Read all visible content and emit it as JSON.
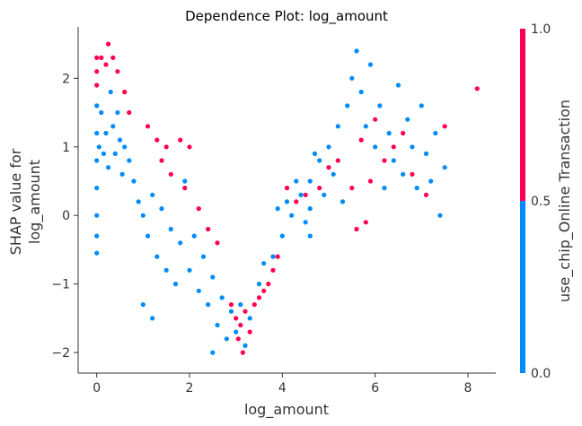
{
  "chart_data": {
    "type": "scatter",
    "title": "Dependence Plot: log_amount",
    "xlabel": "log_amount",
    "ylabel_lines": [
      "SHAP value for",
      "log_amount"
    ],
    "xlim": [
      -0.4,
      8.6
    ],
    "ylim": [
      -2.3,
      2.75
    ],
    "xticks": [
      0,
      2,
      4,
      6,
      8
    ],
    "yticks": [
      -2,
      -1,
      0,
      1,
      2
    ],
    "grid": false,
    "colorbar": {
      "label": "use_chip_Online Transaction",
      "ticks": [
        "0.0",
        "0.5",
        "1.0"
      ],
      "low_color": "#008bfb",
      "high_color": "#ff0052"
    },
    "series": [
      {
        "color_value": 0,
        "color": "#008bfb",
        "points": [
          [
            0.0,
            1.6
          ],
          [
            0.0,
            1.2
          ],
          [
            0.0,
            0.8
          ],
          [
            0.0,
            0.4
          ],
          [
            0.0,
            0.0
          ],
          [
            0.0,
            -0.3
          ],
          [
            0.0,
            -0.55
          ],
          [
            0.05,
            1.0
          ],
          [
            0.1,
            1.5
          ],
          [
            0.15,
            0.9
          ],
          [
            0.2,
            1.2
          ],
          [
            0.25,
            0.7
          ],
          [
            0.3,
            1.8
          ],
          [
            0.35,
            1.3
          ],
          [
            0.4,
            0.9
          ],
          [
            0.45,
            1.5
          ],
          [
            0.5,
            1.1
          ],
          [
            0.55,
            0.6
          ],
          [
            0.6,
            1.0
          ],
          [
            0.7,
            0.8
          ],
          [
            0.8,
            0.5
          ],
          [
            0.9,
            0.2
          ],
          [
            1.0,
            0.0
          ],
          [
            1.1,
            -0.3
          ],
          [
            1.2,
            0.3
          ],
          [
            1.3,
            -0.6
          ],
          [
            1.4,
            0.1
          ],
          [
            1.5,
            -0.8
          ],
          [
            1.6,
            -0.2
          ],
          [
            1.7,
            -1.0
          ],
          [
            1.8,
            -0.4
          ],
          [
            1.9,
            0.5
          ],
          [
            2.0,
            -0.8
          ],
          [
            2.1,
            -0.3
          ],
          [
            2.2,
            -1.1
          ],
          [
            2.3,
            -0.6
          ],
          [
            2.4,
            -1.3
          ],
          [
            2.5,
            -0.9
          ],
          [
            2.6,
            -1.6
          ],
          [
            2.7,
            -1.2
          ],
          [
            2.8,
            -1.8
          ],
          [
            2.9,
            -1.4
          ],
          [
            3.0,
            -1.7
          ],
          [
            3.1,
            -1.3
          ],
          [
            3.3,
            -1.5
          ],
          [
            3.5,
            -1.0
          ],
          [
            3.6,
            -0.7
          ],
          [
            3.8,
            -0.6
          ],
          [
            4.0,
            -0.3
          ],
          [
            4.2,
            0.0
          ],
          [
            4.4,
            0.3
          ],
          [
            4.6,
            0.5
          ],
          [
            4.8,
            0.8
          ],
          [
            5.0,
            1.0
          ],
          [
            5.2,
            1.3
          ],
          [
            5.4,
            1.6
          ],
          [
            5.5,
            2.0
          ],
          [
            5.6,
            2.4
          ],
          [
            5.7,
            1.8
          ],
          [
            5.8,
            1.3
          ],
          [
            5.9,
            2.2
          ],
          [
            6.0,
            1.0
          ],
          [
            6.1,
            1.6
          ],
          [
            6.2,
            0.4
          ],
          [
            6.3,
            1.2
          ],
          [
            6.4,
            0.8
          ],
          [
            6.5,
            1.9
          ],
          [
            6.6,
            0.6
          ],
          [
            6.7,
            1.4
          ],
          [
            6.8,
            1.0
          ],
          [
            6.9,
            0.4
          ],
          [
            7.0,
            1.6
          ],
          [
            7.1,
            0.9
          ],
          [
            7.2,
            0.5
          ],
          [
            7.3,
            1.2
          ],
          [
            7.4,
            0.0
          ],
          [
            7.5,
            0.7
          ],
          [
            4.1,
            0.2
          ],
          [
            4.3,
            0.5
          ],
          [
            4.5,
            -0.1
          ],
          [
            4.7,
            0.9
          ],
          [
            4.9,
            0.3
          ],
          [
            5.1,
            0.6
          ],
          [
            5.3,
            0.2
          ],
          [
            1.0,
            -1.3
          ],
          [
            1.2,
            -1.5
          ],
          [
            2.5,
            -2.0
          ],
          [
            3.2,
            -1.9
          ],
          [
            3.9,
            0.1
          ],
          [
            4.6,
            0.1
          ],
          [
            4.6,
            -0.3
          ]
        ]
      },
      {
        "color_value": 1,
        "color": "#ff0052",
        "points": [
          [
            0.0,
            2.3
          ],
          [
            0.0,
            2.1
          ],
          [
            0.0,
            1.9
          ],
          [
            0.1,
            2.3
          ],
          [
            0.2,
            2.2
          ],
          [
            0.25,
            2.5
          ],
          [
            0.35,
            2.3
          ],
          [
            0.45,
            2.1
          ],
          [
            0.6,
            1.8
          ],
          [
            0.7,
            1.5
          ],
          [
            1.1,
            1.3
          ],
          [
            1.3,
            1.1
          ],
          [
            1.4,
            0.8
          ],
          [
            1.5,
            1.0
          ],
          [
            1.6,
            0.6
          ],
          [
            1.8,
            1.1
          ],
          [
            1.9,
            0.4
          ],
          [
            2.0,
            1.0
          ],
          [
            2.2,
            0.1
          ],
          [
            2.4,
            -0.2
          ],
          [
            2.6,
            -0.4
          ],
          [
            2.9,
            -1.3
          ],
          [
            3.0,
            -1.5
          ],
          [
            3.05,
            -1.8
          ],
          [
            3.1,
            -1.6
          ],
          [
            3.15,
            -2.0
          ],
          [
            3.2,
            -1.4
          ],
          [
            3.3,
            -1.7
          ],
          [
            3.4,
            -1.3
          ],
          [
            3.5,
            -1.2
          ],
          [
            3.6,
            -1.1
          ],
          [
            3.7,
            -1.0
          ],
          [
            3.8,
            -0.8
          ],
          [
            3.9,
            -0.6
          ],
          [
            4.3,
            0.2
          ],
          [
            4.5,
            0.3
          ],
          [
            4.8,
            0.4
          ],
          [
            5.0,
            0.7
          ],
          [
            5.2,
            0.8
          ],
          [
            5.5,
            0.4
          ],
          [
            5.7,
            1.1
          ],
          [
            5.9,
            0.5
          ],
          [
            6.0,
            1.4
          ],
          [
            6.2,
            0.8
          ],
          [
            6.4,
            1.0
          ],
          [
            6.6,
            1.2
          ],
          [
            6.8,
            0.6
          ],
          [
            7.1,
            0.3
          ],
          [
            7.5,
            1.3
          ],
          [
            8.2,
            1.85
          ],
          [
            5.8,
            -0.1
          ],
          [
            5.6,
            -0.2
          ],
          [
            4.1,
            0.4
          ]
        ]
      }
    ]
  }
}
